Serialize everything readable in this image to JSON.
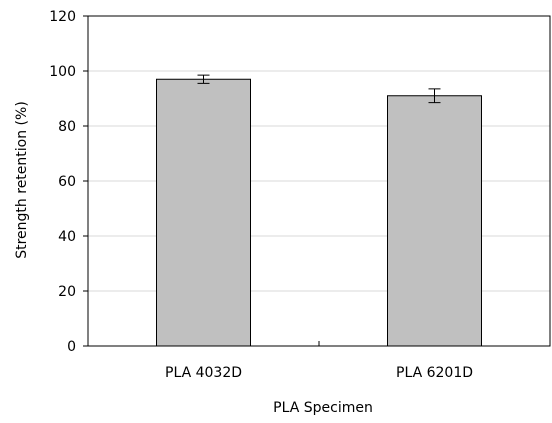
{
  "chart_data": {
    "type": "bar",
    "title": "",
    "xlabel": "PLA Specimen",
    "ylabel": "Strength retention (%)",
    "ylim": [
      0,
      120
    ],
    "yticks": [
      0,
      20,
      40,
      60,
      80,
      100,
      120
    ],
    "grid": true,
    "categories": [
      "PLA 4032D",
      "PLA 6201D"
    ],
    "values": [
      97,
      91
    ],
    "errors": [
      1.5,
      2.5
    ],
    "bar_color": "#c0c0c0",
    "bar_edge_color": "#000000",
    "gridline_color": "#d9d9d9"
  }
}
